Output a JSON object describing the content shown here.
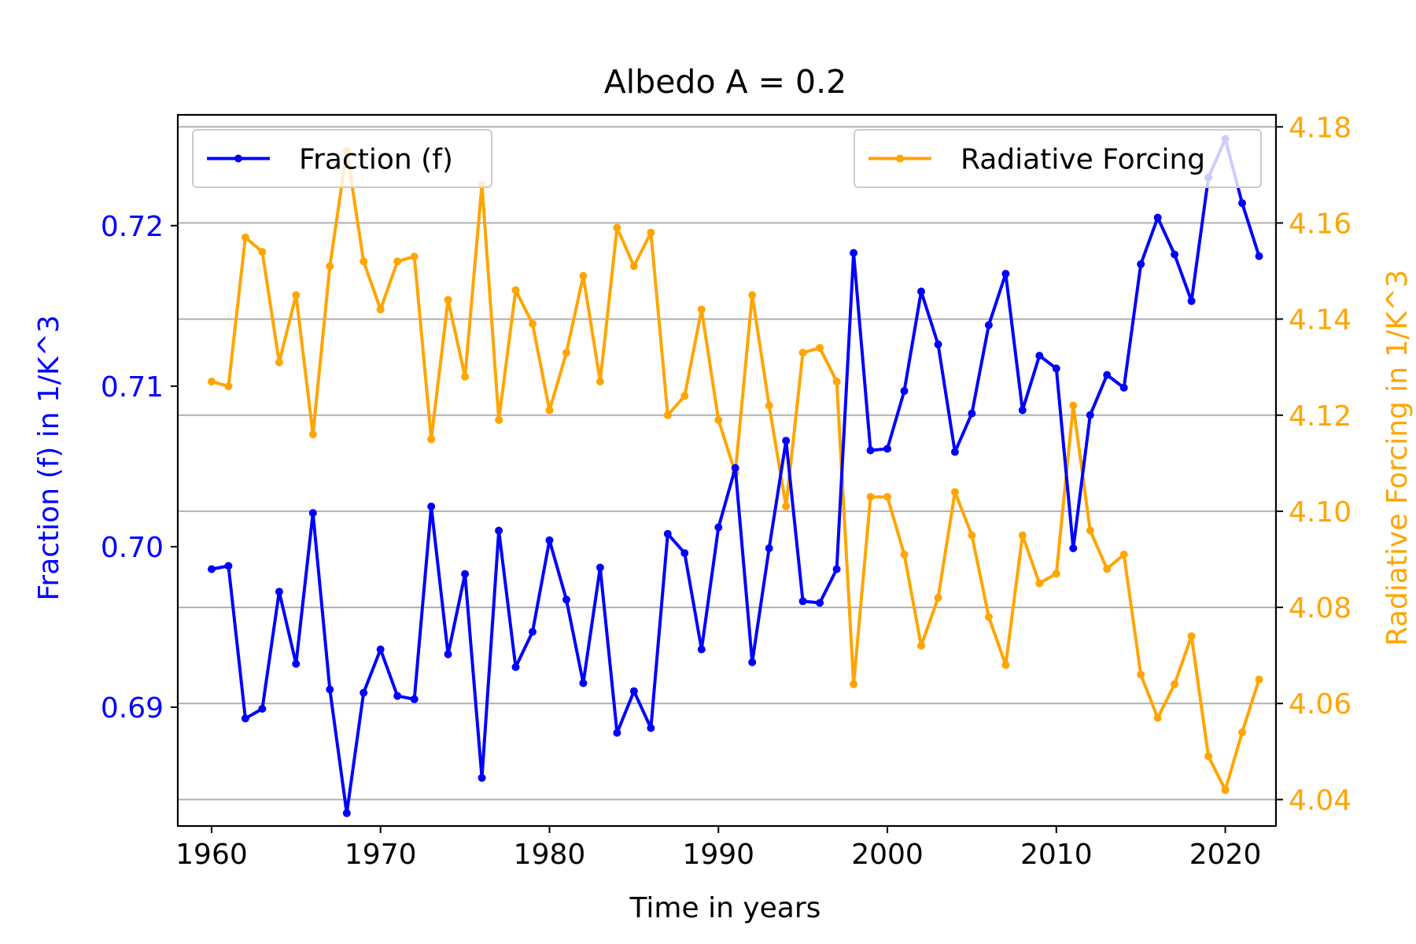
{
  "chart_data": {
    "type": "line",
    "title": "Albedo A = 0.2",
    "xlabel": "Time in years",
    "ylabel_left": "Fraction (f) in 1/K^3",
    "ylabel_right": "Radiative Forcing in 1/K^3",
    "xlim": [
      1958,
      2023
    ],
    "ylim_left": [
      0.6826,
      0.7269
    ],
    "ylim_right": [
      4.0345,
      4.1825
    ],
    "xticks": [
      1960,
      1970,
      1980,
      1990,
      2000,
      2010,
      2020
    ],
    "yticks_left": [
      0.69,
      0.7,
      0.71,
      0.72
    ],
    "yticks_left_labels": [
      "0.69",
      "0.70",
      "0.71",
      "0.72"
    ],
    "yticks_right": [
      4.04,
      4.06,
      4.08,
      4.1,
      4.12,
      4.14,
      4.16,
      4.18
    ],
    "yticks_right_labels": [
      "4.04",
      "4.06",
      "4.08",
      "4.10",
      "4.12",
      "4.14",
      "4.16",
      "4.18"
    ],
    "grid": "horizontal lines at right-axis ticks",
    "x": [
      1960,
      1961,
      1962,
      1963,
      1964,
      1965,
      1966,
      1967,
      1968,
      1969,
      1970,
      1971,
      1972,
      1973,
      1974,
      1975,
      1976,
      1977,
      1978,
      1979,
      1980,
      1981,
      1982,
      1983,
      1984,
      1985,
      1986,
      1987,
      1988,
      1989,
      1990,
      1991,
      1992,
      1993,
      1994,
      1995,
      1996,
      1997,
      1998,
      1999,
      2000,
      2001,
      2002,
      2003,
      2004,
      2005,
      2006,
      2007,
      2008,
      2009,
      2010,
      2011,
      2012,
      2013,
      2014,
      2015,
      2016,
      2017,
      2018,
      2019,
      2020,
      2021,
      2022
    ],
    "series": [
      {
        "name": "Fraction (f)",
        "axis": "left",
        "color": "#0000ff",
        "legend_position": "upper-left",
        "values": [
          0.6986,
          0.6988,
          0.6893,
          0.6899,
          0.6972,
          0.6927,
          0.7021,
          0.6911,
          0.6834,
          0.6909,
          0.6936,
          0.6907,
          0.6905,
          0.7025,
          0.6933,
          0.6983,
          0.6856,
          0.701,
          0.6925,
          0.6947,
          0.7004,
          0.6967,
          0.6915,
          0.6987,
          0.6884,
          0.691,
          0.6887,
          0.7008,
          0.6996,
          0.6936,
          0.7012,
          0.7049,
          0.6928,
          0.6999,
          0.7066,
          0.6966,
          0.6965,
          0.6986,
          0.7183,
          0.706,
          0.7061,
          0.7097,
          0.7159,
          0.7126,
          0.7059,
          0.7083,
          0.7138,
          0.717,
          0.7085,
          0.7119,
          0.7111,
          0.6999,
          0.7082,
          0.7107,
          0.7099,
          0.7176,
          0.7205,
          0.7182,
          0.7153,
          0.723,
          0.7254,
          0.7214,
          0.7181
        ]
      },
      {
        "name": "Radiative Forcing",
        "axis": "right",
        "color": "#ffa500",
        "legend_position": "upper-right",
        "values": [
          4.127,
          4.126,
          4.157,
          4.154,
          4.131,
          4.145,
          4.116,
          4.151,
          4.175,
          4.152,
          4.142,
          4.152,
          4.153,
          4.115,
          4.144,
          4.128,
          4.168,
          4.119,
          4.146,
          4.139,
          4.121,
          4.133,
          4.149,
          4.127,
          4.159,
          4.151,
          4.158,
          4.12,
          4.124,
          4.142,
          4.119,
          4.108,
          4.145,
          4.122,
          4.101,
          4.133,
          4.134,
          4.127,
          4.064,
          4.103,
          4.103,
          4.091,
          4.072,
          4.082,
          4.104,
          4.095,
          4.078,
          4.068,
          4.095,
          4.085,
          4.087,
          4.122,
          4.096,
          4.088,
          4.091,
          4.066,
          4.057,
          4.064,
          4.074,
          4.049,
          4.042,
          4.054,
          4.065
        ]
      }
    ]
  }
}
